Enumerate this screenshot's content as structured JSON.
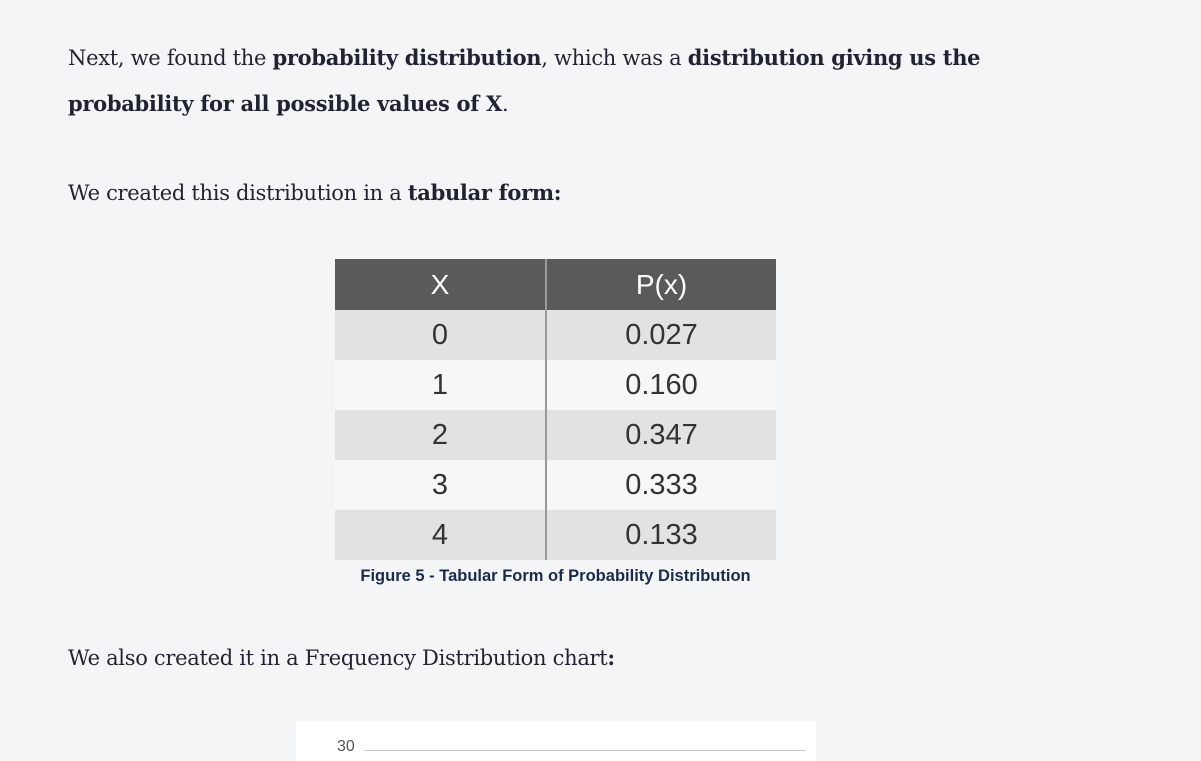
{
  "paragraph1": {
    "t1": "Next, we found the ",
    "b1": "probability distribution",
    "t2": ", which was a ",
    "b2": "distribution giving us the probability for all possible values of X",
    "t3": "."
  },
  "paragraph2": {
    "t1": "We created this distribution in a ",
    "b1": "tabular form:"
  },
  "table": {
    "headers": [
      "X",
      "P(x)"
    ],
    "rows": [
      [
        "0",
        "0.027"
      ],
      [
        "1",
        "0.160"
      ],
      [
        "2",
        "0.347"
      ],
      [
        "3",
        "0.333"
      ],
      [
        "4",
        "0.133"
      ]
    ]
  },
  "caption": "Figure 5 - Tabular Form of Probability Distribution",
  "paragraph3": {
    "t1": "We also created it in a Frequency Distribution chart",
    "b1": ":"
  },
  "chart_preview": {
    "top_tick_label": "30"
  }
}
